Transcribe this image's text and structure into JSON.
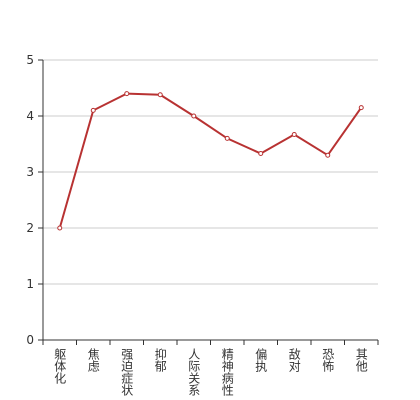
{
  "chart_data": {
    "type": "line",
    "categories": [
      "躯体化",
      "焦虑",
      "强迫症状",
      "抑郁",
      "人际关系",
      "精神病性",
      "偏执",
      "敌对",
      "恐怖",
      "其他"
    ],
    "series": [
      {
        "color": "#b83232",
        "values": [
          2.0,
          4.1,
          4.4,
          4.38,
          4.0,
          3.6,
          3.33,
          3.67,
          3.3,
          4.15
        ]
      }
    ],
    "ylim": [
      0,
      5
    ],
    "yticks": [
      0,
      1,
      2,
      3,
      4,
      5
    ],
    "grid": true
  }
}
